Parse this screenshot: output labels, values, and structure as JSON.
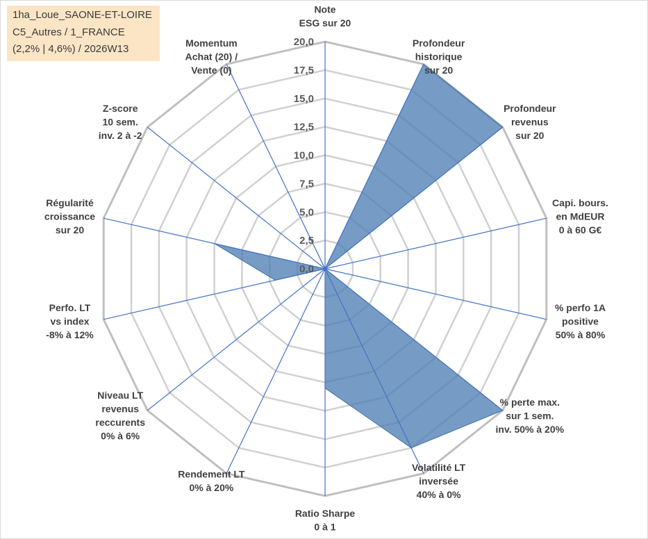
{
  "header": {
    "lines": [
      "1ha_Loue_SAONE-ET-LOIRE",
      "C5_Autres / 1_FRANCE",
      "(2,2% | 4,6%) / 2026W13"
    ]
  },
  "chart_data": {
    "type": "radar",
    "title": "",
    "rlim": [
      0,
      20
    ],
    "tick_values": [
      0,
      2.5,
      5,
      7.5,
      10,
      12.5,
      15,
      17.5,
      20
    ],
    "tick_labels": [
      "0,0",
      "2,5",
      "5,0",
      "7,5",
      "10,0",
      "12,5",
      "15,0",
      "17,5",
      "20,0"
    ],
    "grid": true,
    "axes": [
      {
        "lines": [
          "Note",
          "ESG sur 20"
        ]
      },
      {
        "lines": [
          "Profondeur",
          "historique",
          "sur 20"
        ]
      },
      {
        "lines": [
          "Profondeur",
          "revenus",
          "sur 20"
        ]
      },
      {
        "lines": [
          "Capi. bours.",
          "en MdEUR",
          "0 à 60 G€"
        ]
      },
      {
        "lines": [
          "% perfo 1A",
          "positive",
          "50% à 80%"
        ]
      },
      {
        "lines": [
          "% perte max.",
          "sur 1 sem.",
          "inv. 50% à 20%"
        ]
      },
      {
        "lines": [
          "Volatilité LT",
          "inversée",
          "40% à 0%"
        ]
      },
      {
        "lines": [
          "Ratio Sharpe",
          "0 à 1"
        ]
      },
      {
        "lines": [
          "Rendement LT",
          "0% à 20%"
        ]
      },
      {
        "lines": [
          "Niveau LT",
          "revenus",
          "reccurents",
          "0% à 6%"
        ]
      },
      {
        "lines": [
          "Perfo. LT",
          "vs index",
          "-8% à 12%"
        ]
      },
      {
        "lines": [
          "Régularité",
          "croissance",
          "sur 20"
        ]
      },
      {
        "lines": [
          "Z-score",
          "10 sem.",
          "inv. 2 à -2"
        ]
      },
      {
        "lines": [
          "Momentum",
          "Achat (20) /",
          "Vente (0)"
        ]
      }
    ],
    "series": [
      {
        "values": [
          0,
          20,
          20,
          0,
          0,
          20,
          17.5,
          10.5,
          0,
          0,
          4.5,
          10,
          0,
          4.3
        ],
        "color": "#4f7fb5"
      }
    ]
  }
}
